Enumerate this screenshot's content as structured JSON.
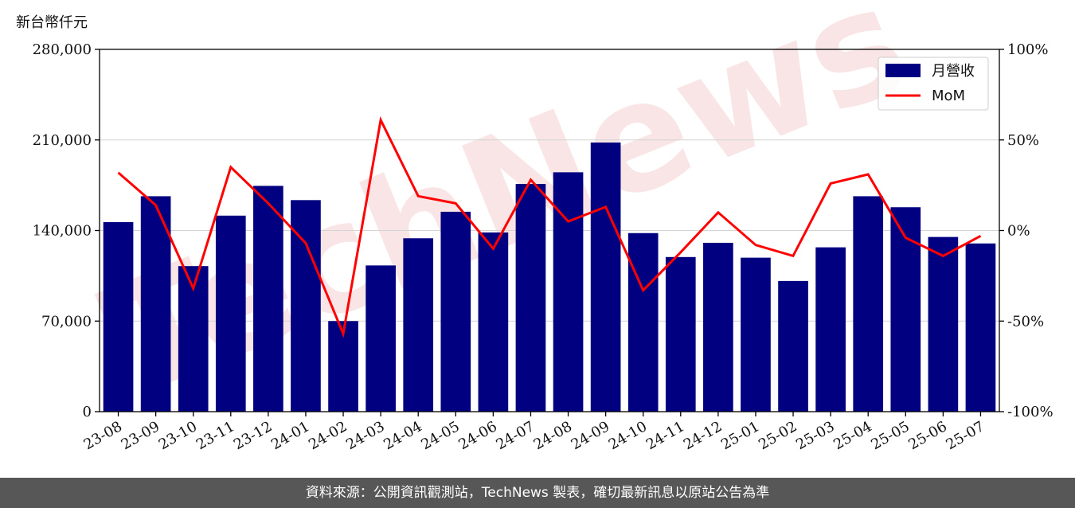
{
  "unit_label": "新台幣仟元",
  "footer": "資料來源：公開資訊觀測站，TechNews 製表，確切最新訊息以原站公告為準",
  "watermark": "TechNews",
  "colors": {
    "bar": "#000080",
    "line": "#ff0000",
    "grid": "#d3d3d3",
    "footer_bg": "#575757"
  },
  "chart_data": {
    "type": "bar",
    "categories": [
      "23-08",
      "23-09",
      "23-10",
      "23-11",
      "23-12",
      "24-01",
      "24-02",
      "24-03",
      "24-04",
      "24-05",
      "24-06",
      "24-07",
      "24-08",
      "24-09",
      "24-10",
      "24-11",
      "24-12",
      "25-01",
      "25-02",
      "25-03",
      "25-04",
      "25-05",
      "25-06",
      "25-07"
    ],
    "series": [
      {
        "name": "月營收",
        "axis": "left",
        "kind": "bar",
        "values": [
          146500,
          166500,
          112500,
          151500,
          174500,
          163500,
          70000,
          113000,
          134000,
          154500,
          138500,
          176000,
          185000,
          208000,
          138000,
          119500,
          130500,
          119000,
          101000,
          127000,
          166500,
          158000,
          135000,
          130000
        ]
      },
      {
        "name": "MoM",
        "axis": "right",
        "kind": "line",
        "unit": "%",
        "values": [
          32,
          14,
          -32,
          35,
          15,
          -7,
          -57,
          61,
          19,
          15,
          -10,
          28,
          5,
          13,
          -33,
          -12,
          10,
          -8,
          -14,
          26,
          31,
          -4,
          -14,
          -3
        ]
      }
    ],
    "y_left": {
      "ylim": [
        0,
        280000
      ],
      "ticks": [
        0,
        70000,
        140000,
        210000,
        280000
      ],
      "tick_labels": [
        "0",
        "70,000",
        "140,000",
        "210,000",
        "280,000"
      ]
    },
    "y_right": {
      "ylim": [
        -100,
        100
      ],
      "ticks": [
        -100,
        -50,
        0,
        50,
        100
      ],
      "tick_labels": [
        "-100%",
        "-50%",
        "0%",
        "50%",
        "100%"
      ]
    },
    "grid": "horizontal",
    "legend": "top-right"
  }
}
